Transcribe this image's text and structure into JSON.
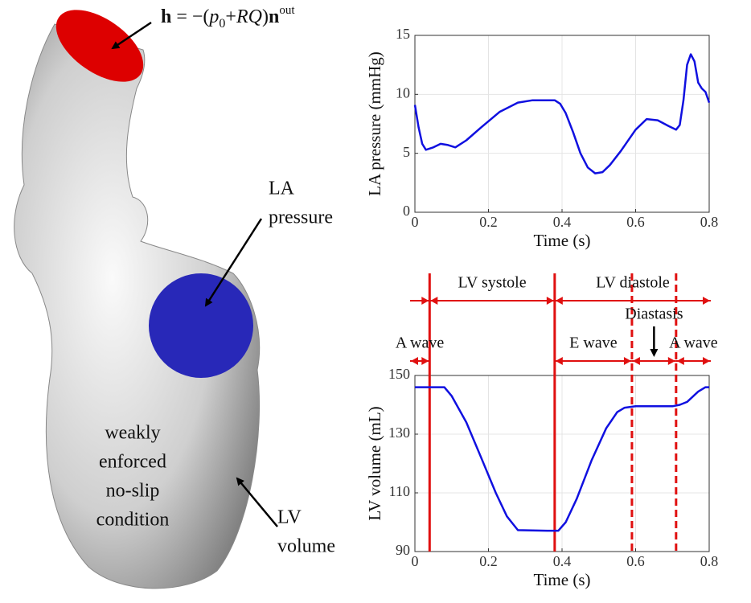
{
  "formula": [
    "h",
    " = −(",
    "p",
    "0",
    "+",
    "RQ",
    ")",
    "n",
    "out"
  ],
  "annotations": {
    "la_pressure": [
      "LA",
      "pressure"
    ],
    "wall": [
      "weakly",
      "enforced",
      "no-slip",
      "condition"
    ],
    "lv_volume": [
      "LV",
      "volume"
    ]
  },
  "chart_data": [
    {
      "type": "line",
      "ylabel": "LA pressure (mmHg)",
      "xlabel": "Time (s)",
      "xlim": [
        0,
        0.8
      ],
      "ylim": [
        0,
        15
      ],
      "xticks": [
        0,
        0.2,
        0.4,
        0.6,
        0.8
      ],
      "yticks": [
        0,
        5,
        10,
        15
      ],
      "grid": true,
      "color": "#1010e0",
      "x": [
        0,
        0.01,
        0.02,
        0.03,
        0.05,
        0.07,
        0.09,
        0.11,
        0.14,
        0.18,
        0.23,
        0.28,
        0.32,
        0.36,
        0.38,
        0.395,
        0.41,
        0.43,
        0.45,
        0.47,
        0.49,
        0.51,
        0.53,
        0.56,
        0.6,
        0.63,
        0.66,
        0.69,
        0.71,
        0.72,
        0.73,
        0.74,
        0.75,
        0.76,
        0.77,
        0.78,
        0.79,
        0.8
      ],
      "values": [
        9.1,
        7.2,
        5.8,
        5.3,
        5.5,
        5.8,
        5.7,
        5.5,
        6.1,
        7.2,
        8.5,
        9.3,
        9.5,
        9.5,
        9.5,
        9.2,
        8.4,
        6.8,
        5.0,
        3.8,
        3.3,
        3.4,
        4.0,
        5.2,
        7.0,
        7.9,
        7.8,
        7.3,
        7.0,
        7.4,
        9.5,
        12.5,
        13.4,
        12.8,
        11.0,
        10.5,
        10.2,
        9.3
      ]
    },
    {
      "type": "line",
      "ylabel": "LV volume (mL)",
      "xlabel": "Time (s)",
      "xlim": [
        0,
        0.8
      ],
      "ylim": [
        90,
        150
      ],
      "xticks": [
        0,
        0.2,
        0.4,
        0.6,
        0.8
      ],
      "yticks": [
        90,
        110,
        130,
        150
      ],
      "grid": true,
      "color": "#1010e0",
      "x": [
        0,
        0.04,
        0.08,
        0.1,
        0.14,
        0.18,
        0.22,
        0.25,
        0.28,
        0.32,
        0.36,
        0.39,
        0.41,
        0.44,
        0.48,
        0.52,
        0.55,
        0.57,
        0.6,
        0.65,
        0.7,
        0.72,
        0.74,
        0.77,
        0.79,
        0.8
      ],
      "values": [
        146,
        146,
        146,
        143,
        134,
        122,
        110,
        102,
        97.3,
        97.2,
        97.1,
        97.1,
        100,
        108,
        121,
        132,
        137.5,
        139,
        139.5,
        139.5,
        139.5,
        140,
        141,
        144.5,
        146,
        146
      ],
      "phase_lines": [
        {
          "x": 0.04,
          "style": "solid"
        },
        {
          "x": 0.38,
          "style": "solid"
        },
        {
          "x": 0.59,
          "style": "dashed"
        },
        {
          "x": 0.71,
          "style": "dashed"
        }
      ],
      "phases": [
        {
          "row": 1,
          "start": 0,
          "end": 0.04
        },
        {
          "row": 1,
          "label": "LV systole",
          "start": 0.04,
          "end": 0.38
        },
        {
          "row": 1,
          "label": "LV diastole",
          "start": 0.38,
          "end": 0.8
        },
        {
          "row": 2,
          "label": "A wave",
          "start": 0,
          "end": 0.04
        },
        {
          "row": 2,
          "label": "E wave",
          "start": 0.38,
          "end": 0.59
        },
        {
          "row": 2,
          "label": "Diastasis",
          "start": 0.59,
          "end": 0.71
        },
        {
          "row": 2,
          "label": "A wave",
          "start": 0.71,
          "end": 0.8
        }
      ],
      "phase_color": "#e01010"
    }
  ]
}
